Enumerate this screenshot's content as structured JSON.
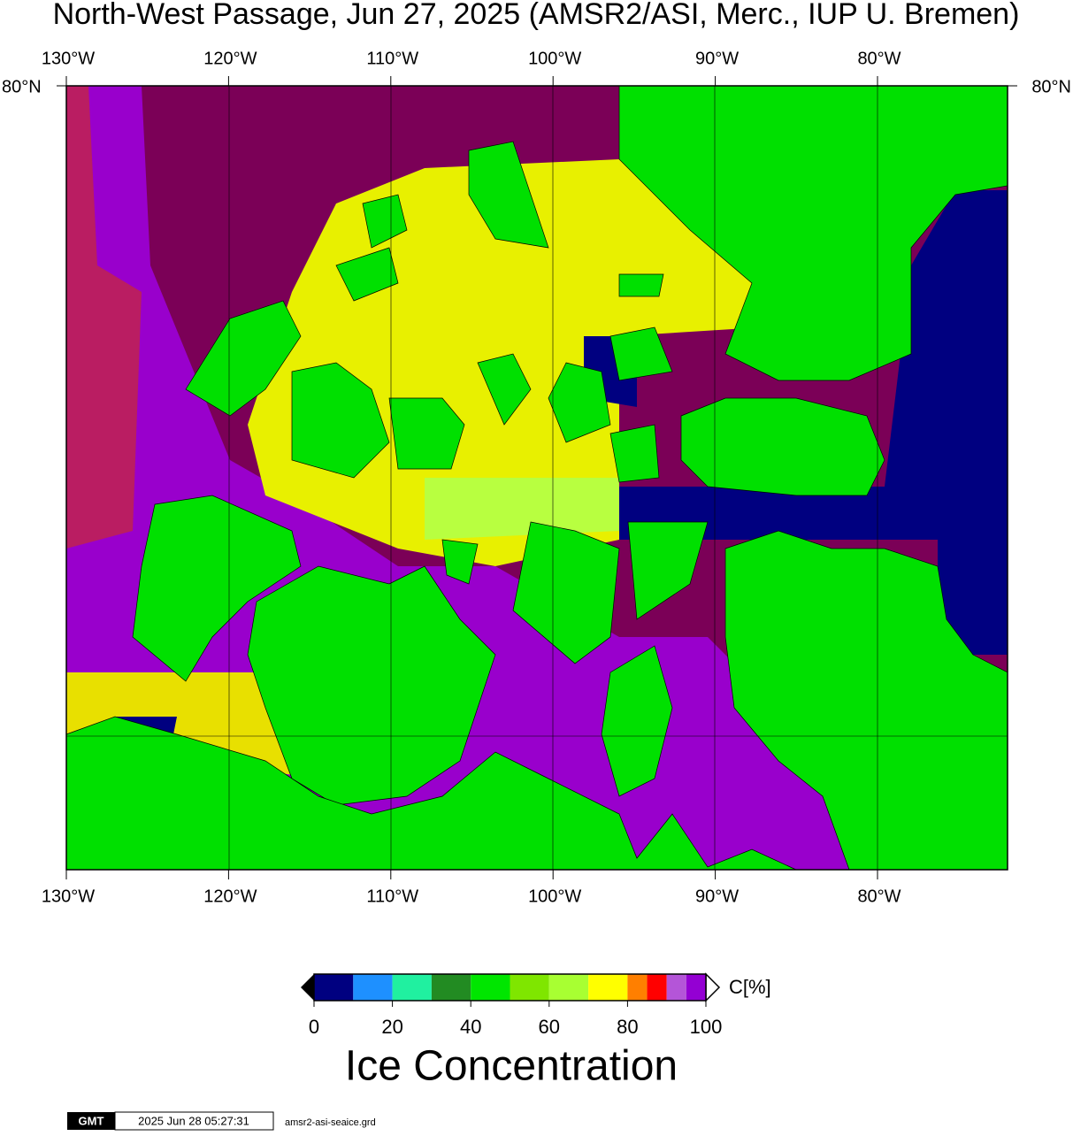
{
  "title": "North-West Passage, Jun 27, 2025 (AMSR2/ASI, Merc., IUP U. Bremen)",
  "map": {
    "lon_labels": [
      "130°W",
      "120°W",
      "110°W",
      "100°W",
      "90°W",
      "80°W"
    ],
    "lat_label": "80°N"
  },
  "colorbar": {
    "unit": "C[%]",
    "title": "Ice Concentration",
    "bounds": [
      0,
      10,
      20,
      30,
      40,
      50,
      60,
      70,
      80,
      85,
      90,
      95,
      100
    ],
    "colors": [
      "#000080",
      "#1e90ff",
      "#20f0a0",
      "#228b22",
      "#00e600",
      "#7fe600",
      "#a8ff32",
      "#ffff00",
      "#ff7f00",
      "#ff0000",
      "#b455d8",
      "#9400d3"
    ],
    "ticks": [
      0,
      20,
      40,
      60,
      80,
      100
    ]
  },
  "footer": {
    "logo": "GMT",
    "timestamp": "2025 Jun 28 05:27:31",
    "file": "amsr2-asi-seaice.grd"
  }
}
